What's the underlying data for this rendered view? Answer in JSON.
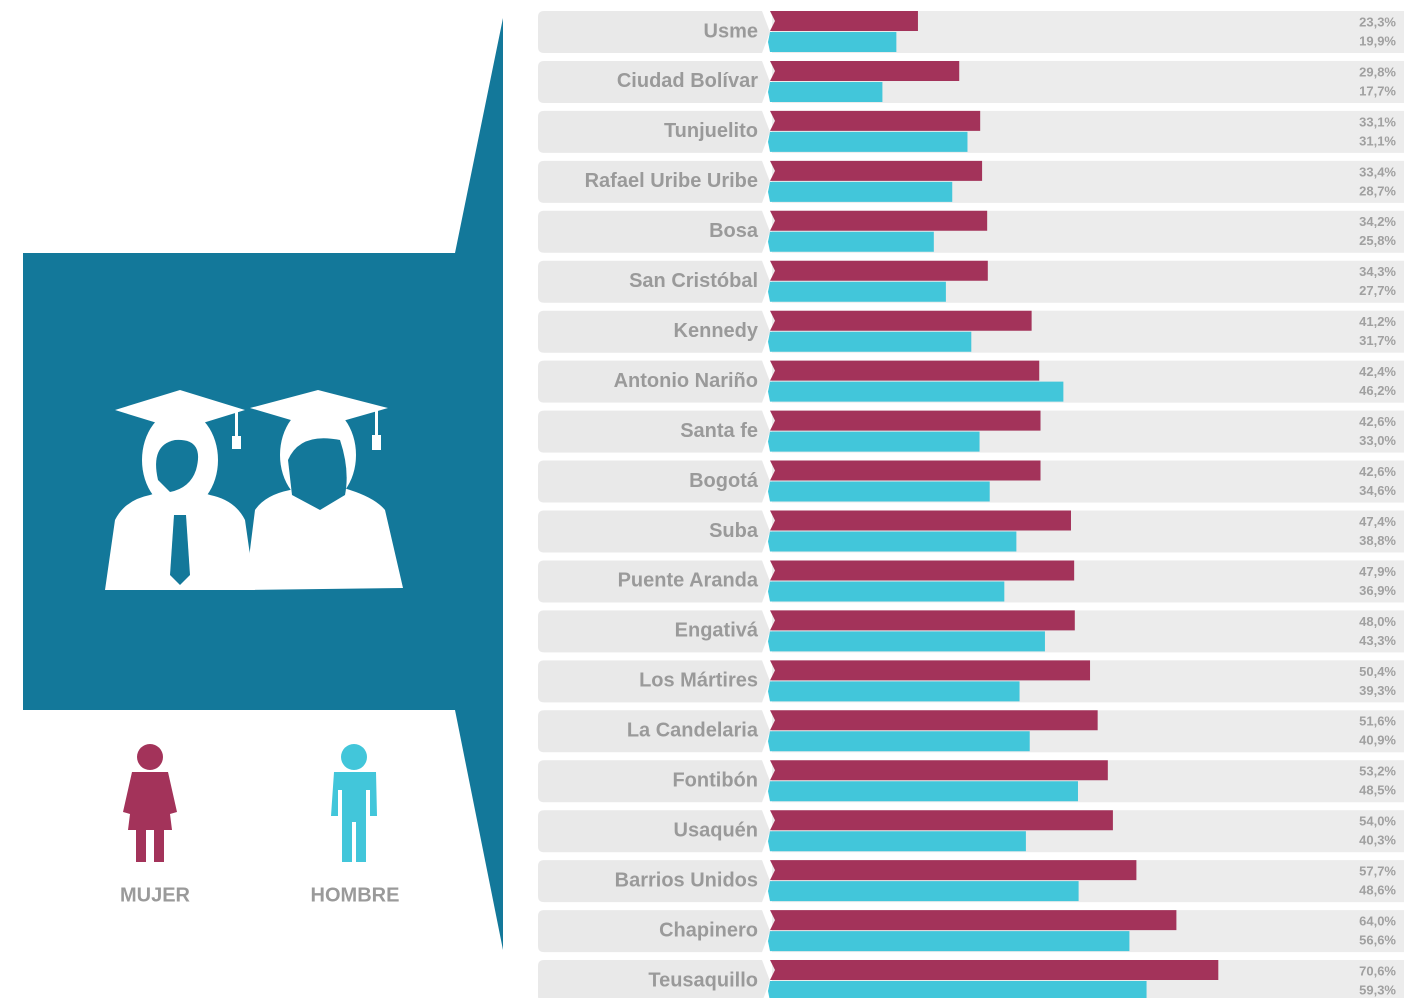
{
  "chart_data": {
    "type": "bar",
    "orientation": "horizontal",
    "categories": [
      "Usme",
      "Ciudad Bolívar",
      "Tunjuelito",
      "Rafael Uribe Uribe",
      "Bosa",
      "San Cristóbal",
      "Kennedy",
      "Antonio Nariño",
      "Santa fe",
      "Bogotá",
      "Suba",
      "Puente Aranda",
      "Engativá",
      "Los Mártires",
      "La Candelaria",
      "Fontibón",
      "Usaquén",
      "Barrios Unidos",
      "Chapinero",
      "Teusaquillo"
    ],
    "series": [
      {
        "name": "MUJER",
        "color": "#a3335a",
        "values": [
          23.3,
          29.8,
          33.1,
          33.4,
          34.2,
          34.3,
          41.2,
          42.4,
          42.6,
          42.6,
          47.4,
          47.9,
          48.0,
          50.4,
          51.6,
          53.2,
          54.0,
          57.7,
          64.0,
          70.6
        ],
        "value_labels": [
          "23,3%",
          "29,8%",
          "33,1%",
          "33,4%",
          "34,2%",
          "34,3%",
          "41,2%",
          "42,4%",
          "42,6%",
          "42,6%",
          "47,4%",
          "47,9%",
          "48,0%",
          "50,4%",
          "51,6%",
          "53,2%",
          "54,0%",
          "57,7%",
          "64,0%",
          "70,6%"
        ]
      },
      {
        "name": "HOMBRE",
        "color": "#42c6da",
        "values": [
          19.9,
          17.7,
          31.1,
          28.7,
          25.8,
          27.7,
          31.7,
          46.2,
          33.0,
          34.6,
          38.8,
          36.9,
          43.3,
          39.3,
          40.9,
          48.5,
          40.3,
          48.6,
          56.6,
          59.3
        ],
        "value_labels": [
          "19,9%",
          "17,7%",
          "31,1%",
          "28,7%",
          "25,8%",
          "27,7%",
          "31,7%",
          "46,2%",
          "33,0%",
          "34,6%",
          "38,8%",
          "36,9%",
          "43,3%",
          "39,3%",
          "40,9%",
          "48,5%",
          "40,3%",
          "48,6%",
          "56,6%",
          "59,3%"
        ]
      }
    ],
    "xlim": [
      0,
      100
    ]
  }
}
